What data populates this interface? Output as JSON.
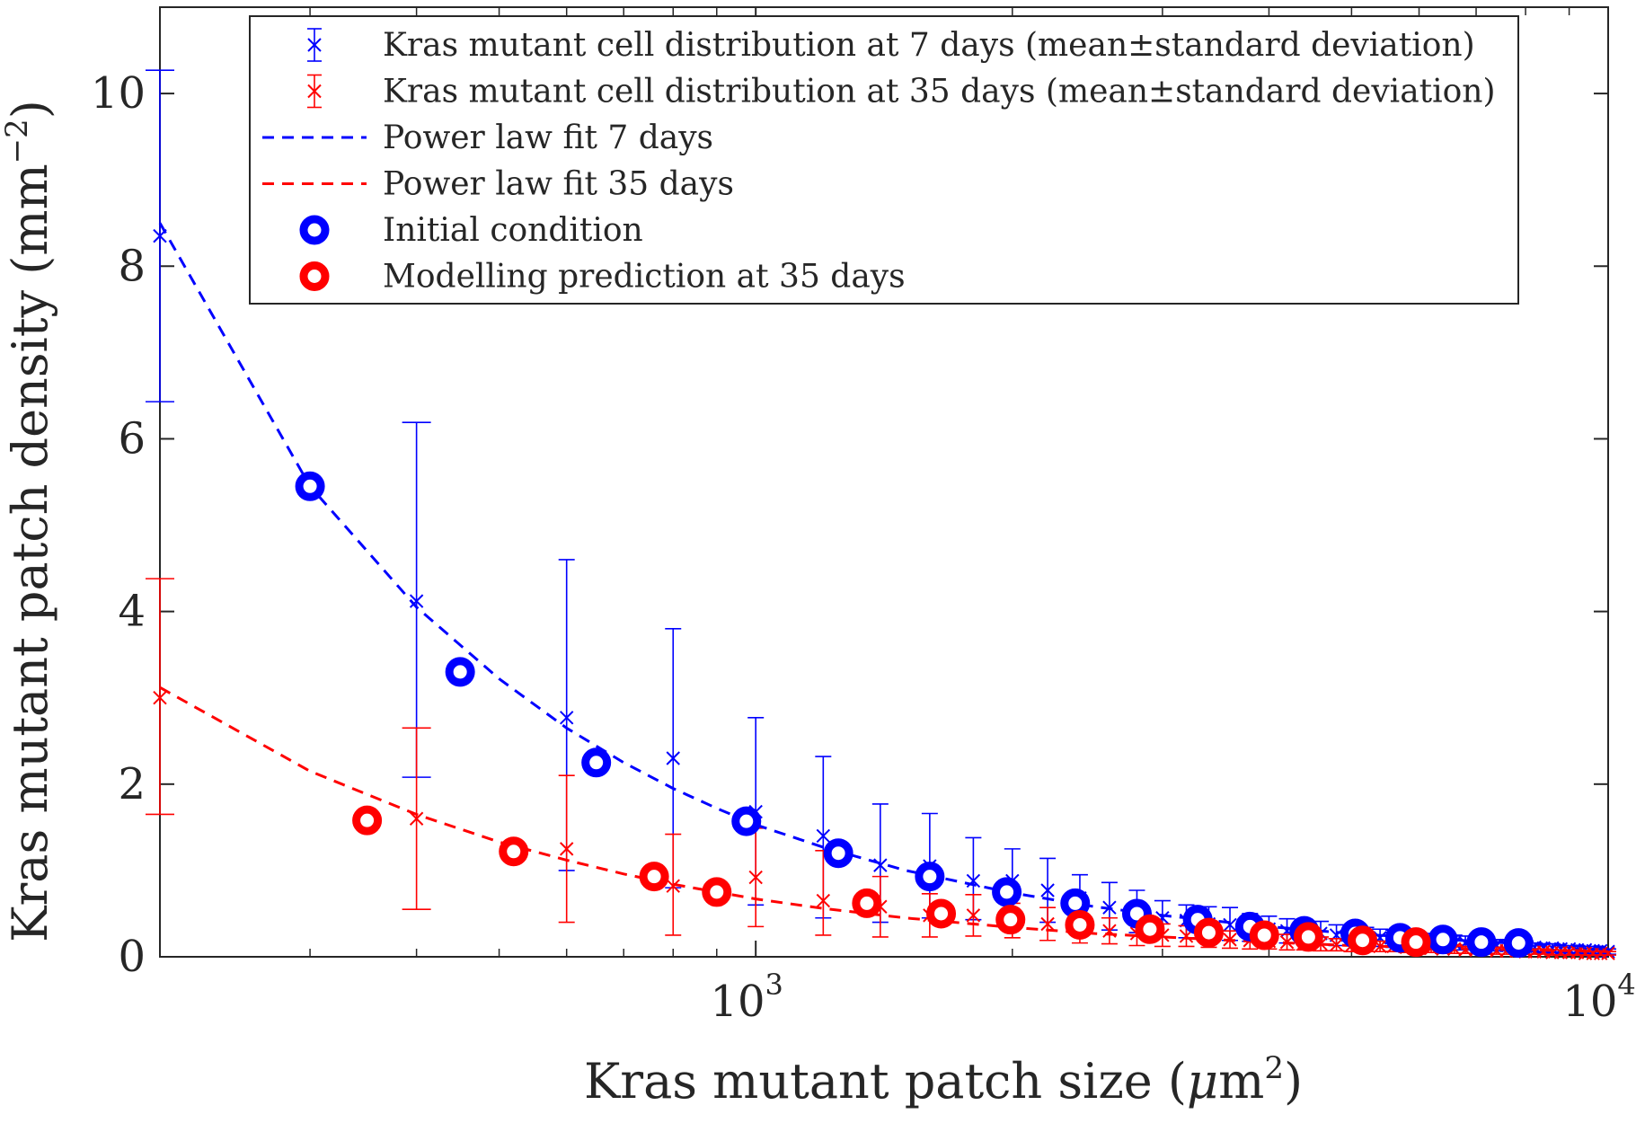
{
  "chart_data": {
    "type": "scatter",
    "xscale": "log",
    "xlim": [
      200,
      10000
    ],
    "ylim": [
      0,
      11
    ],
    "grid": false,
    "legend_position": "top-right",
    "xlabel": {
      "text": "Kras mutant patch size (",
      "symbol": "μ",
      "unit": "m",
      "sup": "2",
      "close": ")"
    },
    "ylabel": {
      "text": "Kras mutant patch density (mm",
      "sup": "−2",
      "close": ")"
    },
    "x_ticks": [
      {
        "value": 1000,
        "base": "10",
        "exp": "3"
      },
      {
        "value": 10000,
        "base": "10",
        "exp": "4"
      }
    ],
    "y_ticks": [
      {
        "value": 0,
        "label": "0"
      },
      {
        "value": 2,
        "label": "2"
      },
      {
        "value": 4,
        "label": "4"
      },
      {
        "value": 6,
        "label": "6"
      },
      {
        "value": 8,
        "label": "8"
      },
      {
        "value": 10,
        "label": "10"
      }
    ],
    "colors": {
      "blue": "#0000ff",
      "red": "#ff0000",
      "axes": "#262626"
    },
    "legend": [
      {
        "label": "Kras mutant cell distribution at 7 days (mean±standard deviation)",
        "marker": "errorbar-x",
        "color": "#0000ff"
      },
      {
        "label": "Kras mutant cell distribution at 35 days (mean±standard deviation)",
        "marker": "errorbar-x",
        "color": "#ff0000"
      },
      {
        "label": "Power law fit 7 days",
        "marker": "dashed",
        "color": "#0000ff"
      },
      {
        "label": "Power law fit 35 days",
        "marker": "dashed",
        "color": "#ff0000"
      },
      {
        "label": "Initial condition",
        "marker": "circle",
        "color": "#0000ff"
      },
      {
        "label": "Modelling prediction at 35 days",
        "marker": "circle",
        "color": "#ff0000"
      }
    ],
    "series": [
      {
        "name": "Kras mutant cell distribution at 7 days (mean±standard deviation)",
        "kind": "errorbar",
        "color": "#0000ff",
        "x": [
          200,
          400,
          600,
          800,
          1000,
          1200,
          1400,
          1600,
          1800,
          2000,
          2200,
          2400,
          2600,
          2800,
          3000,
          3200,
          3400,
          3600,
          3800,
          4000,
          4200,
          4400,
          4600,
          4800,
          5000,
          5200,
          5400,
          5600,
          5800,
          6000,
          6200,
          6400,
          6600,
          6800,
          7000,
          7200,
          7400,
          7600,
          7800,
          8000,
          8200,
          8400,
          8600,
          8800,
          9000,
          9200,
          9400,
          9600,
          9800,
          10000
        ],
        "y": [
          8.35,
          4.12,
          2.77,
          2.3,
          1.68,
          1.4,
          1.06,
          1.05,
          0.88,
          0.88,
          0.77,
          0.68,
          0.57,
          0.52,
          0.45,
          0.42,
          0.38,
          0.37,
          0.34,
          0.32,
          0.3,
          0.28,
          0.27,
          0.25,
          0.24,
          0.23,
          0.22,
          0.21,
          0.2,
          0.19,
          0.18,
          0.17,
          0.16,
          0.16,
          0.15,
          0.14,
          0.13,
          0.13,
          0.12,
          0.12,
          0.11,
          0.1,
          0.1,
          0.09,
          0.09,
          0.08,
          0.08,
          0.07,
          0.07,
          0.06
        ],
        "err_low": [
          1.92,
          2.04,
          1.77,
          1.5,
          1.08,
          0.95,
          0.66,
          0.6,
          0.45,
          0.4,
          0.37,
          0.3,
          0.26,
          0.24,
          0.22,
          0.2,
          0.18,
          0.18,
          0.16,
          0.15,
          0.14,
          0.13,
          0.13,
          0.12,
          0.11,
          0.11,
          0.1,
          0.1,
          0.1,
          0.09,
          0.09,
          0.08,
          0.08,
          0.08,
          0.07,
          0.07,
          0.06,
          0.06,
          0.06,
          0.06,
          0.05,
          0.05,
          0.05,
          0.04,
          0.04,
          0.04,
          0.04,
          0.03,
          0.03,
          0.03
        ],
        "err_high": [
          1.92,
          2.07,
          1.83,
          1.5,
          1.09,
          0.92,
          0.71,
          0.61,
          0.5,
          0.37,
          0.37,
          0.27,
          0.29,
          0.25,
          0.2,
          0.18,
          0.2,
          0.2,
          0.16,
          0.15,
          0.14,
          0.14,
          0.14,
          0.12,
          0.12,
          0.11,
          0.1,
          0.1,
          0.1,
          0.09,
          0.09,
          0.09,
          0.09,
          0.08,
          0.08,
          0.07,
          0.07,
          0.06,
          0.06,
          0.06,
          0.05,
          0.05,
          0.05,
          0.04,
          0.04,
          0.04,
          0.04,
          0.03,
          0.03,
          0.03
        ]
      },
      {
        "name": "Kras mutant cell distribution at 35 days (mean±standard deviation)",
        "kind": "errorbar",
        "color": "#ff0000",
        "x": [
          200,
          400,
          600,
          800,
          1000,
          1200,
          1400,
          1600,
          1800,
          2000,
          2200,
          2400,
          2600,
          2800,
          3000,
          3200,
          3400,
          3600,
          3800,
          4000,
          4200,
          4400,
          4600,
          4800,
          5000,
          5200,
          5400,
          5600,
          5800,
          6000,
          6200,
          6400,
          6600,
          6800,
          7000,
          7200,
          7400,
          7600,
          7800,
          8000,
          8200,
          8400,
          8600,
          8800,
          9000,
          9200,
          9400,
          9600,
          9800,
          10000
        ],
        "y": [
          3.0,
          1.6,
          1.25,
          0.82,
          0.92,
          0.65,
          0.58,
          0.48,
          0.48,
          0.42,
          0.38,
          0.33,
          0.3,
          0.27,
          0.25,
          0.24,
          0.22,
          0.2,
          0.19,
          0.18,
          0.17,
          0.16,
          0.15,
          0.14,
          0.13,
          0.13,
          0.12,
          0.12,
          0.11,
          0.1,
          0.1,
          0.09,
          0.09,
          0.08,
          0.08,
          0.08,
          0.07,
          0.07,
          0.07,
          0.06,
          0.06,
          0.06,
          0.05,
          0.05,
          0.05,
          0.05,
          0.04,
          0.04,
          0.04,
          0.04
        ],
        "err_low": [
          1.35,
          1.05,
          0.85,
          0.57,
          0.57,
          0.4,
          0.35,
          0.25,
          0.24,
          0.2,
          0.19,
          0.17,
          0.15,
          0.14,
          0.13,
          0.12,
          0.11,
          0.1,
          0.1,
          0.09,
          0.09,
          0.08,
          0.08,
          0.07,
          0.07,
          0.07,
          0.06,
          0.06,
          0.06,
          0.05,
          0.05,
          0.05,
          0.05,
          0.04,
          0.04,
          0.04,
          0.04,
          0.04,
          0.04,
          0.03,
          0.03,
          0.03,
          0.03,
          0.03,
          0.03,
          0.03,
          0.02,
          0.02,
          0.02,
          0.02
        ],
        "err_high": [
          1.38,
          1.05,
          0.85,
          0.6,
          0.57,
          0.58,
          0.35,
          0.25,
          0.24,
          0.2,
          0.19,
          0.17,
          0.15,
          0.14,
          0.13,
          0.12,
          0.11,
          0.1,
          0.1,
          0.09,
          0.09,
          0.08,
          0.08,
          0.07,
          0.07,
          0.07,
          0.06,
          0.06,
          0.06,
          0.05,
          0.05,
          0.05,
          0.05,
          0.04,
          0.04,
          0.04,
          0.04,
          0.04,
          0.04,
          0.03,
          0.03,
          0.03,
          0.03,
          0.03,
          0.03,
          0.03,
          0.02,
          0.02,
          0.02,
          0.02
        ]
      },
      {
        "name": "Power law fit 7 days",
        "kind": "dashed-line",
        "color": "#0000ff",
        "x": [
          200,
          300,
          400,
          500,
          600,
          700,
          800,
          900,
          1000,
          1200,
          1500,
          2000,
          2500,
          3000,
          4000,
          5000,
          6000,
          7000,
          8000,
          9000,
          10000
        ],
        "y": [
          8.5,
          5.45,
          4.05,
          3.22,
          2.65,
          2.25,
          1.95,
          1.72,
          1.53,
          1.27,
          1.0,
          0.74,
          0.58,
          0.48,
          0.35,
          0.27,
          0.22,
          0.18,
          0.15,
          0.13,
          0.11
        ]
      },
      {
        "name": "Power law fit 35 days",
        "kind": "dashed-line",
        "color": "#ff0000",
        "x": [
          200,
          300,
          400,
          500,
          600,
          700,
          800,
          900,
          1000,
          1200,
          1500,
          2000,
          2500,
          3000,
          4000,
          5000,
          6000,
          7000,
          8000,
          9000,
          10000
        ],
        "y": [
          3.12,
          2.15,
          1.65,
          1.33,
          1.12,
          0.96,
          0.84,
          0.75,
          0.67,
          0.56,
          0.45,
          0.34,
          0.27,
          0.23,
          0.17,
          0.13,
          0.11,
          0.09,
          0.08,
          0.07,
          0.06
        ]
      },
      {
        "name": "Initial condition",
        "kind": "circles",
        "color": "#0000ff",
        "x": [
          300,
          450,
          650,
          975,
          1250,
          1600,
          1970,
          2370,
          2800,
          3300,
          3800,
          4400,
          5050,
          5700,
          6400,
          7100,
          7850
        ],
        "y": [
          5.45,
          3.3,
          2.25,
          1.57,
          1.2,
          0.93,
          0.75,
          0.62,
          0.5,
          0.43,
          0.35,
          0.3,
          0.27,
          0.22,
          0.2,
          0.17,
          0.16
        ]
      },
      {
        "name": "Modelling prediction at 35 days",
        "kind": "circles",
        "color": "#ff0000",
        "x": [
          350,
          520,
          760,
          900,
          1350,
          1650,
          1990,
          2400,
          2900,
          3400,
          3950,
          4450,
          5150,
          5950
        ],
        "y": [
          1.58,
          1.22,
          0.93,
          0.75,
          0.62,
          0.5,
          0.43,
          0.37,
          0.32,
          0.28,
          0.25,
          0.23,
          0.19,
          0.17
        ]
      }
    ]
  }
}
